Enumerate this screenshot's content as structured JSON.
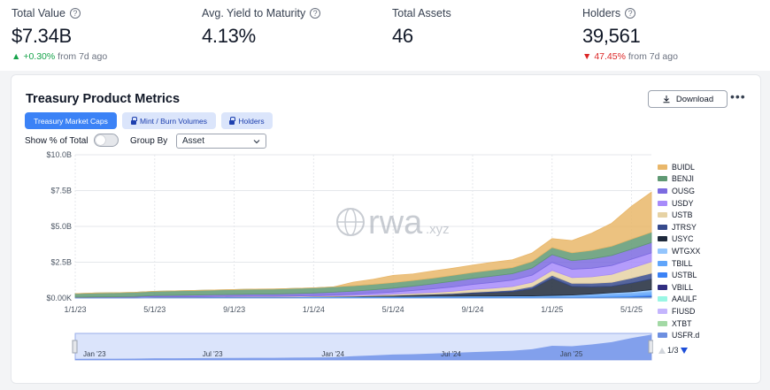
{
  "kpis": [
    {
      "label": "Total Value",
      "value": "$7.34B",
      "change": "+0.30%",
      "change_dir": "up",
      "period": "from 7d ago",
      "help": true
    },
    {
      "label": "Avg. Yield to Maturity",
      "value": "4.13%",
      "change": "",
      "change_dir": "",
      "period": "",
      "help": true
    },
    {
      "label": "Total Assets",
      "value": "46",
      "change": "",
      "change_dir": "",
      "period": "",
      "help": false
    },
    {
      "label": "Holders",
      "value": "39,561",
      "change": "47.45%",
      "change_dir": "down",
      "period": "from 7d ago",
      "help": true
    }
  ],
  "card": {
    "title": "Treasury Product Metrics",
    "download_label": "Download",
    "more_label": "•••",
    "tabs": [
      {
        "label": "Treasury Market Caps",
        "active": true,
        "locked": false
      },
      {
        "label": "Mint / Burn Volumes",
        "active": false,
        "locked": true
      },
      {
        "label": "Holders",
        "active": false,
        "locked": true
      }
    ],
    "show_pct_label": "Show % of Total",
    "group_by_label": "Group By",
    "group_by_value": "Asset",
    "pager": "1/3"
  },
  "watermark": {
    "brand": "rwa",
    "suffix": ".xyz"
  },
  "navigator_labels": [
    "Jan '23",
    "Jul '23",
    "Jan '24",
    "Jul '24",
    "Jan '25"
  ],
  "chart_data": {
    "type": "area",
    "stacked": true,
    "x": [
      "1/1/23",
      "2/1/23",
      "3/1/23",
      "4/1/23",
      "5/1/23",
      "6/1/23",
      "7/1/23",
      "8/1/23",
      "9/1/23",
      "10/1/23",
      "11/1/23",
      "12/1/23",
      "1/1/24",
      "2/1/24",
      "3/1/24",
      "4/1/24",
      "5/1/24",
      "6/1/24",
      "7/1/24",
      "8/1/24",
      "9/1/24",
      "10/1/24",
      "11/1/24",
      "12/1/24",
      "1/1/25",
      "2/1/25",
      "3/1/25",
      "4/1/25",
      "5/1/25",
      "6/1/25"
    ],
    "x_ticks": [
      "1/1/23",
      "5/1/23",
      "9/1/23",
      "1/1/24",
      "5/1/24",
      "9/1/24",
      "1/1/25",
      "5/1/25"
    ],
    "y_ticks": [
      "$0.00K",
      "$2.5B",
      "$5.0B",
      "$7.5B",
      "$10.0B"
    ],
    "ylim": [
      0,
      10
    ],
    "y_unit": "B",
    "grid": true,
    "legend_position": "right",
    "series": [
      {
        "name": "USFR.d",
        "color": "#6d8fe0",
        "values": [
          0.02,
          0.02,
          0.02,
          0.02,
          0.03,
          0.03,
          0.03,
          0.03,
          0.03,
          0.03,
          0.03,
          0.03,
          0.03,
          0.03,
          0.04,
          0.04,
          0.04,
          0.04,
          0.05,
          0.05,
          0.05,
          0.05,
          0.05,
          0.05,
          0.05,
          0.05,
          0.05,
          0.05,
          0.05,
          0.05
        ]
      },
      {
        "name": "XTBT",
        "color": "#a3d9a5",
        "values": [
          0,
          0,
          0,
          0,
          0,
          0,
          0,
          0,
          0,
          0,
          0,
          0,
          0,
          0,
          0,
          0,
          0,
          0,
          0,
          0,
          0,
          0,
          0,
          0,
          0.01,
          0.01,
          0.01,
          0.01,
          0.01,
          0.01
        ]
      },
      {
        "name": "FIUSD",
        "color": "#c4b5fd",
        "values": [
          0,
          0,
          0,
          0,
          0,
          0,
          0,
          0,
          0,
          0,
          0,
          0,
          0,
          0,
          0,
          0,
          0,
          0,
          0,
          0,
          0,
          0,
          0,
          0,
          0,
          0,
          0,
          0,
          0,
          0.01
        ]
      },
      {
        "name": "AAULF",
        "color": "#99f6e4",
        "values": [
          0,
          0,
          0,
          0,
          0,
          0,
          0,
          0,
          0,
          0,
          0,
          0,
          0,
          0,
          0,
          0,
          0,
          0,
          0,
          0,
          0,
          0,
          0,
          0,
          0,
          0,
          0,
          0.01,
          0.01,
          0.01
        ]
      },
      {
        "name": "VBILL",
        "color": "#312e81",
        "values": [
          0,
          0,
          0,
          0,
          0,
          0,
          0,
          0,
          0,
          0,
          0,
          0,
          0,
          0,
          0,
          0,
          0,
          0,
          0,
          0,
          0,
          0,
          0,
          0,
          0,
          0,
          0,
          0.01,
          0.02,
          0.03
        ]
      },
      {
        "name": "USTBL",
        "color": "#3b82f6",
        "values": [
          0,
          0,
          0,
          0,
          0,
          0,
          0,
          0,
          0,
          0,
          0,
          0,
          0,
          0,
          0,
          0,
          0,
          0,
          0,
          0,
          0,
          0,
          0,
          0,
          0.01,
          0.01,
          0.02,
          0.03,
          0.05,
          0.1
        ]
      },
      {
        "name": "TBILL",
        "color": "#60a5fa",
        "values": [
          0.02,
          0.03,
          0.03,
          0.03,
          0.04,
          0.04,
          0.04,
          0.05,
          0.05,
          0.05,
          0.05,
          0.05,
          0.06,
          0.06,
          0.06,
          0.07,
          0.07,
          0.08,
          0.08,
          0.08,
          0.09,
          0.09,
          0.1,
          0.1,
          0.1,
          0.12,
          0.15,
          0.18,
          0.2,
          0.22
        ]
      },
      {
        "name": "WTGXX",
        "color": "#93c5fd",
        "values": [
          0,
          0,
          0,
          0,
          0,
          0,
          0,
          0,
          0,
          0,
          0,
          0,
          0,
          0,
          0,
          0,
          0,
          0,
          0,
          0,
          0,
          0,
          0,
          0,
          0.01,
          0.02,
          0.05,
          0.08,
          0.1,
          0.15
        ]
      },
      {
        "name": "USYC",
        "color": "#1e293b",
        "values": [
          0.0,
          0.0,
          0.0,
          0.0,
          0.0,
          0.0,
          0.0,
          0.0,
          0.0,
          0.0,
          0.0,
          0.0,
          0.01,
          0.02,
          0.03,
          0.05,
          0.08,
          0.1,
          0.12,
          0.15,
          0.2,
          0.25,
          0.3,
          0.5,
          1.2,
          0.6,
          0.5,
          0.45,
          0.6,
          0.75
        ]
      },
      {
        "name": "JTRSY",
        "color": "#374a8c",
        "values": [
          0,
          0,
          0,
          0,
          0,
          0,
          0,
          0,
          0,
          0,
          0,
          0,
          0,
          0,
          0,
          0,
          0,
          0.01,
          0.02,
          0.04,
          0.06,
          0.08,
          0.1,
          0.15,
          0.2,
          0.22,
          0.25,
          0.28,
          0.35,
          0.4
        ]
      },
      {
        "name": "USTB",
        "color": "#e6d2a4",
        "values": [
          0.01,
          0.01,
          0.01,
          0.01,
          0.02,
          0.02,
          0.02,
          0.02,
          0.03,
          0.03,
          0.03,
          0.04,
          0.04,
          0.05,
          0.05,
          0.06,
          0.08,
          0.1,
          0.12,
          0.15,
          0.2,
          0.22,
          0.25,
          0.3,
          0.35,
          0.4,
          0.45,
          0.55,
          0.7,
          0.8
        ]
      },
      {
        "name": "USDY",
        "color": "#a78bfa",
        "values": [
          0,
          0,
          0,
          0,
          0,
          0,
          0,
          0,
          0,
          0.01,
          0.01,
          0.02,
          0.03,
          0.05,
          0.08,
          0.12,
          0.15,
          0.2,
          0.25,
          0.3,
          0.35,
          0.4,
          0.45,
          0.5,
          0.55,
          0.58,
          0.6,
          0.62,
          0.62,
          0.62
        ]
      },
      {
        "name": "OUSG",
        "color": "#7c6be0",
        "values": [
          0.01,
          0.02,
          0.03,
          0.05,
          0.08,
          0.1,
          0.12,
          0.13,
          0.14,
          0.15,
          0.16,
          0.17,
          0.18,
          0.2,
          0.22,
          0.24,
          0.27,
          0.3,
          0.35,
          0.4,
          0.42,
          0.44,
          0.45,
          0.5,
          0.55,
          0.6,
          0.65,
          0.7,
          0.7,
          0.72
        ]
      },
      {
        "name": "BENJI",
        "color": "#5f9973",
        "values": [
          0.25,
          0.27,
          0.28,
          0.29,
          0.3,
          0.31,
          0.32,
          0.33,
          0.34,
          0.35,
          0.35,
          0.36,
          0.36,
          0.37,
          0.38,
          0.38,
          0.39,
          0.4,
          0.4,
          0.41,
          0.41,
          0.42,
          0.42,
          0.45,
          0.5,
          0.55,
          0.6,
          0.65,
          0.7,
          0.72
        ]
      },
      {
        "name": "BUIDL",
        "color": "#e9b76a",
        "values": [
          0,
          0,
          0,
          0,
          0,
          0,
          0,
          0,
          0,
          0,
          0,
          0,
          0,
          0,
          0.25,
          0.35,
          0.5,
          0.45,
          0.5,
          0.5,
          0.52,
          0.55,
          0.55,
          0.6,
          0.62,
          0.85,
          1.2,
          1.6,
          2.3,
          2.8
        ]
      }
    ]
  }
}
